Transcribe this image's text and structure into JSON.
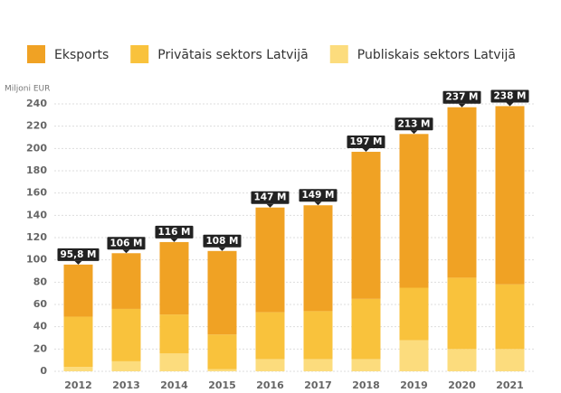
{
  "chart_data": {
    "type": "bar",
    "stacked": true,
    "y_label": "Miljoni EUR",
    "categories": [
      "2012",
      "2013",
      "2014",
      "2015",
      "2016",
      "2017",
      "2018",
      "2019",
      "2020",
      "2021"
    ],
    "series": [
      {
        "name": "Publiskais sektors Latvijā",
        "color": "#fcdc7d",
        "values": [
          4,
          9,
          16,
          2,
          11,
          11,
          11,
          28,
          20,
          20
        ]
      },
      {
        "name": "Privātais sektors Latvijā",
        "color": "#f9c23c",
        "values": [
          45,
          47,
          35,
          31,
          42,
          43,
          54,
          47,
          64,
          58
        ]
      },
      {
        "name": "Eksports",
        "color": "#f0a224",
        "values": [
          46.8,
          50,
          65,
          75,
          94,
          95,
          132,
          138,
          153,
          160
        ]
      }
    ],
    "totals": {
      "values": [
        95.8,
        106,
        116,
        108,
        147,
        149,
        197,
        213,
        237,
        238
      ],
      "value_labels": [
        "95,8 M",
        "106 M",
        "116 M",
        "108 M",
        "147 M",
        "149 M",
        "197 M",
        "213 M",
        "237 M",
        "238 M"
      ]
    },
    "ylim": [
      0,
      240
    ],
    "yticks": [
      0,
      20,
      40,
      60,
      80,
      100,
      120,
      140,
      160,
      180,
      200,
      220,
      240
    ],
    "grid": true
  }
}
